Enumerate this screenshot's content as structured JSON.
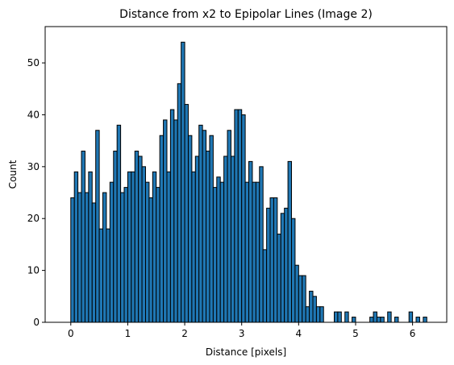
{
  "chart_data": {
    "type": "bar",
    "title": "Distance from x2 to Epipolar Lines (Image 2)",
    "xlabel": "Distance [pixels]",
    "ylabel": "Count",
    "xlim": [
      -0.45,
      6.6
    ],
    "ylim": [
      0,
      57
    ],
    "xticks": [
      0,
      1,
      2,
      3,
      4,
      5,
      6
    ],
    "yticks": [
      0,
      10,
      20,
      30,
      40,
      50
    ],
    "grid": false,
    "bin_width": 0.0625,
    "bins": [
      {
        "x": 0.0,
        "y": 24
      },
      {
        "x": 0.0625,
        "y": 29
      },
      {
        "x": 0.125,
        "y": 25
      },
      {
        "x": 0.1875,
        "y": 33
      },
      {
        "x": 0.25,
        "y": 25
      },
      {
        "x": 0.3125,
        "y": 29
      },
      {
        "x": 0.375,
        "y": 23
      },
      {
        "x": 0.4375,
        "y": 37
      },
      {
        "x": 0.5,
        "y": 18
      },
      {
        "x": 0.5625,
        "y": 25
      },
      {
        "x": 0.625,
        "y": 18
      },
      {
        "x": 0.6875,
        "y": 27
      },
      {
        "x": 0.75,
        "y": 33
      },
      {
        "x": 0.8125,
        "y": 38
      },
      {
        "x": 0.875,
        "y": 25
      },
      {
        "x": 0.9375,
        "y": 26
      },
      {
        "x": 1.0,
        "y": 29
      },
      {
        "x": 1.0625,
        "y": 29
      },
      {
        "x": 1.125,
        "y": 33
      },
      {
        "x": 1.1875,
        "y": 32
      },
      {
        "x": 1.25,
        "y": 30
      },
      {
        "x": 1.3125,
        "y": 27
      },
      {
        "x": 1.375,
        "y": 24
      },
      {
        "x": 1.4375,
        "y": 29
      },
      {
        "x": 1.5,
        "y": 26
      },
      {
        "x": 1.5625,
        "y": 36
      },
      {
        "x": 1.625,
        "y": 39
      },
      {
        "x": 1.6875,
        "y": 29
      },
      {
        "x": 1.75,
        "y": 41
      },
      {
        "x": 1.8125,
        "y": 39
      },
      {
        "x": 1.875,
        "y": 46
      },
      {
        "x": 1.9375,
        "y": 54
      },
      {
        "x": 2.0,
        "y": 42
      },
      {
        "x": 2.0625,
        "y": 36
      },
      {
        "x": 2.125,
        "y": 29
      },
      {
        "x": 2.1875,
        "y": 32
      },
      {
        "x": 2.25,
        "y": 38
      },
      {
        "x": 2.3125,
        "y": 37
      },
      {
        "x": 2.375,
        "y": 33
      },
      {
        "x": 2.4375,
        "y": 36
      },
      {
        "x": 2.5,
        "y": 26
      },
      {
        "x": 2.5625,
        "y": 28
      },
      {
        "x": 2.625,
        "y": 27
      },
      {
        "x": 2.6875,
        "y": 32
      },
      {
        "x": 2.75,
        "y": 37
      },
      {
        "x": 2.8125,
        "y": 32
      },
      {
        "x": 2.875,
        "y": 41
      },
      {
        "x": 2.9375,
        "y": 41
      },
      {
        "x": 3.0,
        "y": 40
      },
      {
        "x": 3.0625,
        "y": 27
      },
      {
        "x": 3.125,
        "y": 31
      },
      {
        "x": 3.1875,
        "y": 27
      },
      {
        "x": 3.25,
        "y": 27
      },
      {
        "x": 3.3125,
        "y": 30
      },
      {
        "x": 3.375,
        "y": 14
      },
      {
        "x": 3.4375,
        "y": 22
      },
      {
        "x": 3.5,
        "y": 24
      },
      {
        "x": 3.5625,
        "y": 24
      },
      {
        "x": 3.625,
        "y": 17
      },
      {
        "x": 3.6875,
        "y": 21
      },
      {
        "x": 3.75,
        "y": 22
      },
      {
        "x": 3.8125,
        "y": 31
      },
      {
        "x": 3.875,
        "y": 20
      },
      {
        "x": 3.9375,
        "y": 11
      },
      {
        "x": 4.0,
        "y": 9
      },
      {
        "x": 4.0625,
        "y": 9
      },
      {
        "x": 4.125,
        "y": 3
      },
      {
        "x": 4.1875,
        "y": 6
      },
      {
        "x": 4.25,
        "y": 5
      },
      {
        "x": 4.3125,
        "y": 3
      },
      {
        "x": 4.375,
        "y": 3
      },
      {
        "x": 4.625,
        "y": 2
      },
      {
        "x": 4.6875,
        "y": 2
      },
      {
        "x": 4.8125,
        "y": 2
      },
      {
        "x": 4.9375,
        "y": 1
      },
      {
        "x": 5.25,
        "y": 1
      },
      {
        "x": 5.3125,
        "y": 2
      },
      {
        "x": 5.375,
        "y": 1
      },
      {
        "x": 5.4375,
        "y": 1
      },
      {
        "x": 5.5625,
        "y": 2
      },
      {
        "x": 5.6875,
        "y": 1
      },
      {
        "x": 5.9375,
        "y": 2
      },
      {
        "x": 6.0625,
        "y": 1
      },
      {
        "x": 6.1875,
        "y": 1
      }
    ],
    "colors": {
      "bar_fill": "#1f77b4",
      "bar_edge": "#000000"
    }
  }
}
